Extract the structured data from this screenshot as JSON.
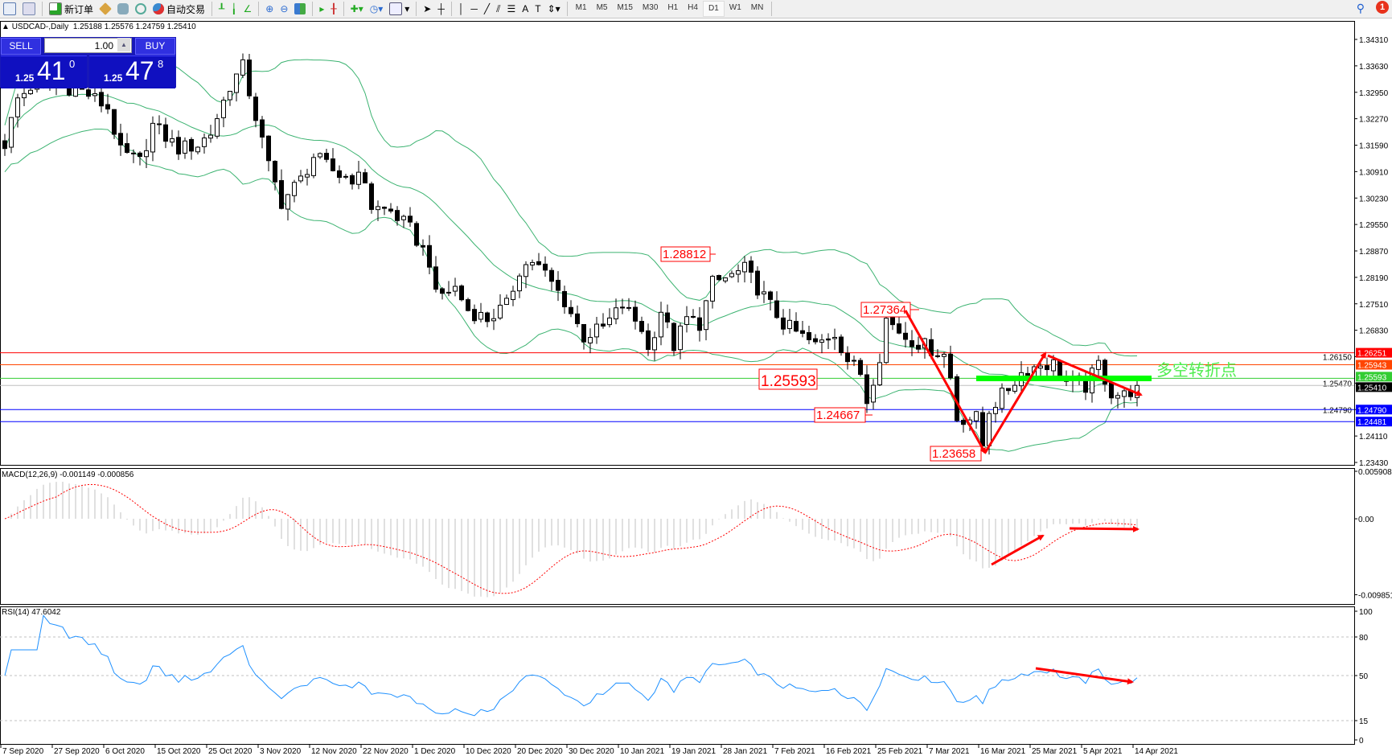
{
  "toolbar": {
    "new_order": "新订单",
    "auto_trading": "自动交易",
    "timeframes": [
      "M1",
      "M5",
      "M15",
      "M30",
      "H1",
      "H4",
      "D1",
      "W1",
      "MN"
    ],
    "active_timeframe": "D1",
    "notification_count": "1"
  },
  "chart": {
    "symbol_header": "USDCAD-,Daily",
    "ohlc": "1.25188 1.25576 1.24759 1.25410",
    "price_ticks": [
      "1.34310",
      "1.33630",
      "1.32950",
      "1.32270",
      "1.31590",
      "1.30910",
      "1.30230",
      "1.29550",
      "1.28870",
      "1.28190",
      "1.27510",
      "1.26830",
      "1.26150",
      "1.25470",
      "1.24790",
      "1.24110",
      "1.23430"
    ],
    "price_range": [
      1.2343,
      1.3431
    ],
    "date_ticks": [
      "7 Sep 2020",
      "27 Sep 2020",
      "6 Oct 2020",
      "15 Oct 2020",
      "25 Oct 2020",
      "3 Nov 2020",
      "12 Nov 2020",
      "22 Nov 2020",
      "1 Dec 2020",
      "10 Dec 2020",
      "20 Dec 2020",
      "30 Dec 2020",
      "10 Jan 2021",
      "19 Jan 2021",
      "28 Jan 2021",
      "7 Feb 2021",
      "16 Feb 2021",
      "25 Feb 2021",
      "7 Mar 2021",
      "16 Mar 2021",
      "25 Mar 2021",
      "5 Apr 2021",
      "14 Apr 2021"
    ],
    "hlines": [
      {
        "price": "1.26251",
        "color": "#ff0000"
      },
      {
        "price": "1.25943",
        "color": "#ff4500"
      },
      {
        "price": "1.25593",
        "color": "#32cd32"
      },
      {
        "price": "1.25410",
        "color": "#000000"
      },
      {
        "price": "1.24790",
        "color": "#0000ff"
      },
      {
        "price": "1.24481",
        "color": "#0000ff"
      }
    ],
    "annotations": {
      "labels": [
        "1.28812",
        "1.27364",
        "1.25593",
        "1.24667",
        "1.23658"
      ],
      "pivot_text": "多空转折点",
      "arrow_color": "#ff0000",
      "pivot_color": "#00ff00"
    },
    "bollinger_color": "#3cb371",
    "close_path": [
      [
        0,
        1.3163
      ],
      [
        2,
        1.3278
      ],
      [
        5,
        1.3325
      ],
      [
        12,
        1.33
      ],
      [
        16,
        1.3255
      ],
      [
        18,
        1.314
      ],
      [
        21,
        1.3116
      ],
      [
        23,
        1.321
      ],
      [
        27,
        1.315
      ],
      [
        30,
        1.316
      ],
      [
        32,
        1.319
      ],
      [
        35,
        1.3313
      ],
      [
        37,
        1.336
      ],
      [
        39,
        1.3232
      ],
      [
        41,
        1.3105
      ],
      [
        43,
        1.3013
      ],
      [
        46,
        1.307
      ],
      [
        48,
        1.313
      ],
      [
        52,
        1.3082
      ],
      [
        56,
        1.307
      ],
      [
        57,
        1.3
      ],
      [
        60,
        1.2989
      ],
      [
        63,
        1.2943
      ],
      [
        66,
        1.2862
      ],
      [
        67,
        1.2769
      ],
      [
        70,
        1.2792
      ],
      [
        72,
        1.2735
      ],
      [
        75,
        1.2712
      ],
      [
        78,
        1.2746
      ],
      [
        80,
        1.2839
      ],
      [
        82,
        1.2862
      ],
      [
        84,
        1.2827
      ],
      [
        87,
        1.2758
      ],
      [
        90,
        1.2666
      ],
      [
        93,
        1.2689
      ],
      [
        96,
        1.2746
      ],
      [
        99,
        1.2689
      ],
      [
        100,
        1.263
      ],
      [
        102,
        1.2735
      ],
      [
        104,
        1.2643
      ],
      [
        106,
        1.2712
      ],
      [
        108,
        1.27
      ],
      [
        110,
        1.2804
      ],
      [
        112,
        1.2816
      ],
      [
        115,
        1.2839
      ],
      [
        118,
        1.2769
      ],
      [
        121,
        1.27
      ],
      [
        123,
        1.2677
      ],
      [
        126,
        1.2643
      ],
      [
        129,
        1.2677
      ],
      [
        131,
        1.2607
      ],
      [
        133,
        1.2573
      ],
      [
        134,
        1.2503
      ],
      [
        136,
        1.2619
      ],
      [
        137,
        1.2712
      ],
      [
        140,
        1.2666
      ],
      [
        143,
        1.2643
      ],
      [
        146,
        1.262
      ],
      [
        147,
        1.2561
      ],
      [
        148,
        1.2457
      ],
      [
        151,
        1.2457
      ],
      [
        152,
        1.2387
      ],
      [
        153,
        1.248
      ],
      [
        155,
        1.2515
      ],
      [
        158,
        1.2573
      ],
      [
        161,
        1.2596
      ],
      [
        163,
        1.2596
      ],
      [
        165,
        1.255
      ],
      [
        168,
        1.2538
      ],
      [
        170,
        1.2596
      ],
      [
        172,
        1.2522
      ],
      [
        174,
        1.2515
      ],
      [
        176,
        1.2541
      ]
    ]
  },
  "trade_panel": {
    "sell_label": "SELL",
    "buy_label": "BUY",
    "lot": "1.00",
    "bid": {
      "prefix": "1.25",
      "main": "41",
      "pip": "0"
    },
    "ask": {
      "prefix": "1.25",
      "main": "47",
      "pip": "8"
    }
  },
  "macd": {
    "label": "MACD(12,26,9) -0.001149 -0.000856",
    "ticks": [
      "0.005908",
      "0.00",
      "-0.009851"
    ],
    "range": [
      -0.009851,
      0.005908
    ],
    "histogram_color": "#c0c0c0",
    "signal_color": "#ff0000"
  },
  "rsi": {
    "label": "RSI(14) 47.6042",
    "ticks": [
      "100",
      "80",
      "50",
      "15",
      "0"
    ],
    "line_color": "#1e90ff"
  }
}
